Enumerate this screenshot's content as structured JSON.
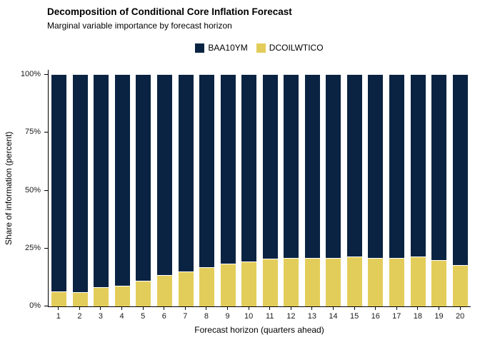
{
  "header": {
    "title": "Decomposition of Conditional Core Inflation Forecast",
    "subtitle": "Marginal variable importance by forecast horizon"
  },
  "legend": {
    "items": [
      {
        "label": "BAA10YM",
        "color": "#0a2342"
      },
      {
        "label": "DCOILWTICO",
        "color": "#e3cd5a"
      }
    ]
  },
  "chart_data": {
    "type": "bar",
    "stacked": true,
    "orientation": "vertical",
    "title": "Decomposition of Conditional Core Inflation Forecast",
    "subtitle": "Marginal variable importance by forecast horizon",
    "xlabel": "Forecast horizon (quarters ahead)",
    "ylabel": "Share of information (percent)",
    "categories": [
      "1",
      "2",
      "3",
      "4",
      "5",
      "6",
      "7",
      "8",
      "9",
      "10",
      "11",
      "12",
      "13",
      "14",
      "15",
      "16",
      "17",
      "18",
      "19",
      "20"
    ],
    "series": [
      {
        "name": "BAA10YM",
        "color": "#0a2342",
        "values": [
          93.5,
          93.7,
          91.8,
          91.0,
          89.0,
          86.5,
          85.0,
          83.0,
          81.5,
          80.5,
          79.5,
          79.0,
          79.0,
          79.2,
          78.5,
          79.2,
          79.0,
          78.5,
          80.0,
          82.2
        ]
      },
      {
        "name": "DCOILWTICO",
        "color": "#e3cd5a",
        "values": [
          6.5,
          6.3,
          8.2,
          9.0,
          11.0,
          13.5,
          15.0,
          17.0,
          18.5,
          19.5,
          20.5,
          21.0,
          21.0,
          20.8,
          21.5,
          20.8,
          21.0,
          21.5,
          20.0,
          17.8
        ]
      }
    ],
    "ylim": [
      0,
      100
    ],
    "yticks": [
      {
        "value": 0,
        "label": "0%"
      },
      {
        "value": 25,
        "label": "25%"
      },
      {
        "value": 50,
        "label": "50%"
      },
      {
        "value": 75,
        "label": "75%"
      },
      {
        "value": 100,
        "label": "100%"
      }
    ],
    "grid": false,
    "legend_position": "top",
    "background": "#ffffff"
  }
}
